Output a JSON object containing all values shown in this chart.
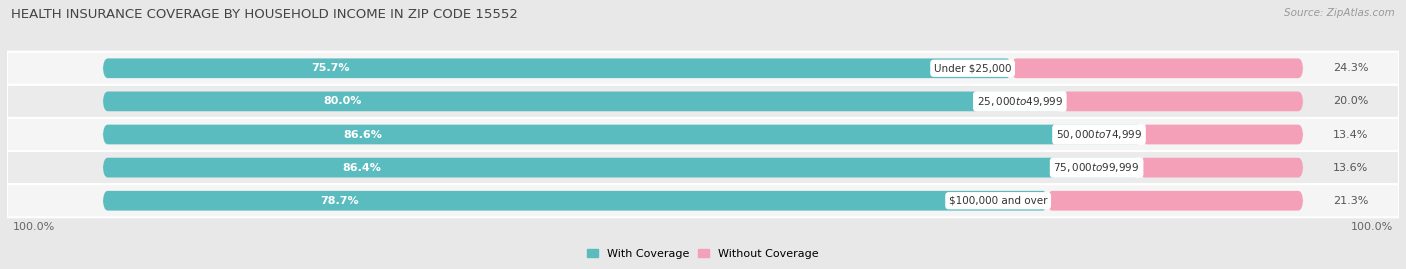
{
  "title": "HEALTH INSURANCE COVERAGE BY HOUSEHOLD INCOME IN ZIP CODE 15552",
  "source": "Source: ZipAtlas.com",
  "categories": [
    "Under $25,000",
    "$25,000 to $49,999",
    "$50,000 to $74,999",
    "$75,000 to $99,999",
    "$100,000 and over"
  ],
  "with_coverage": [
    75.7,
    80.0,
    86.6,
    86.4,
    78.7
  ],
  "without_coverage": [
    24.3,
    20.0,
    13.4,
    13.6,
    21.3
  ],
  "color_with": "#5bbcbf",
  "color_without": "#f4a0b8",
  "bg_color": "#e8e8e8",
  "row_bg_even": "#f5f5f5",
  "row_bg_odd": "#ebebeb",
  "title_fontsize": 9.5,
  "bar_label_fontsize": 8,
  "cat_label_fontsize": 7.5,
  "source_fontsize": 7.5,
  "legend_fontsize": 8,
  "bar_height": 0.58,
  "xlim_left": -8,
  "xlim_right": 108
}
